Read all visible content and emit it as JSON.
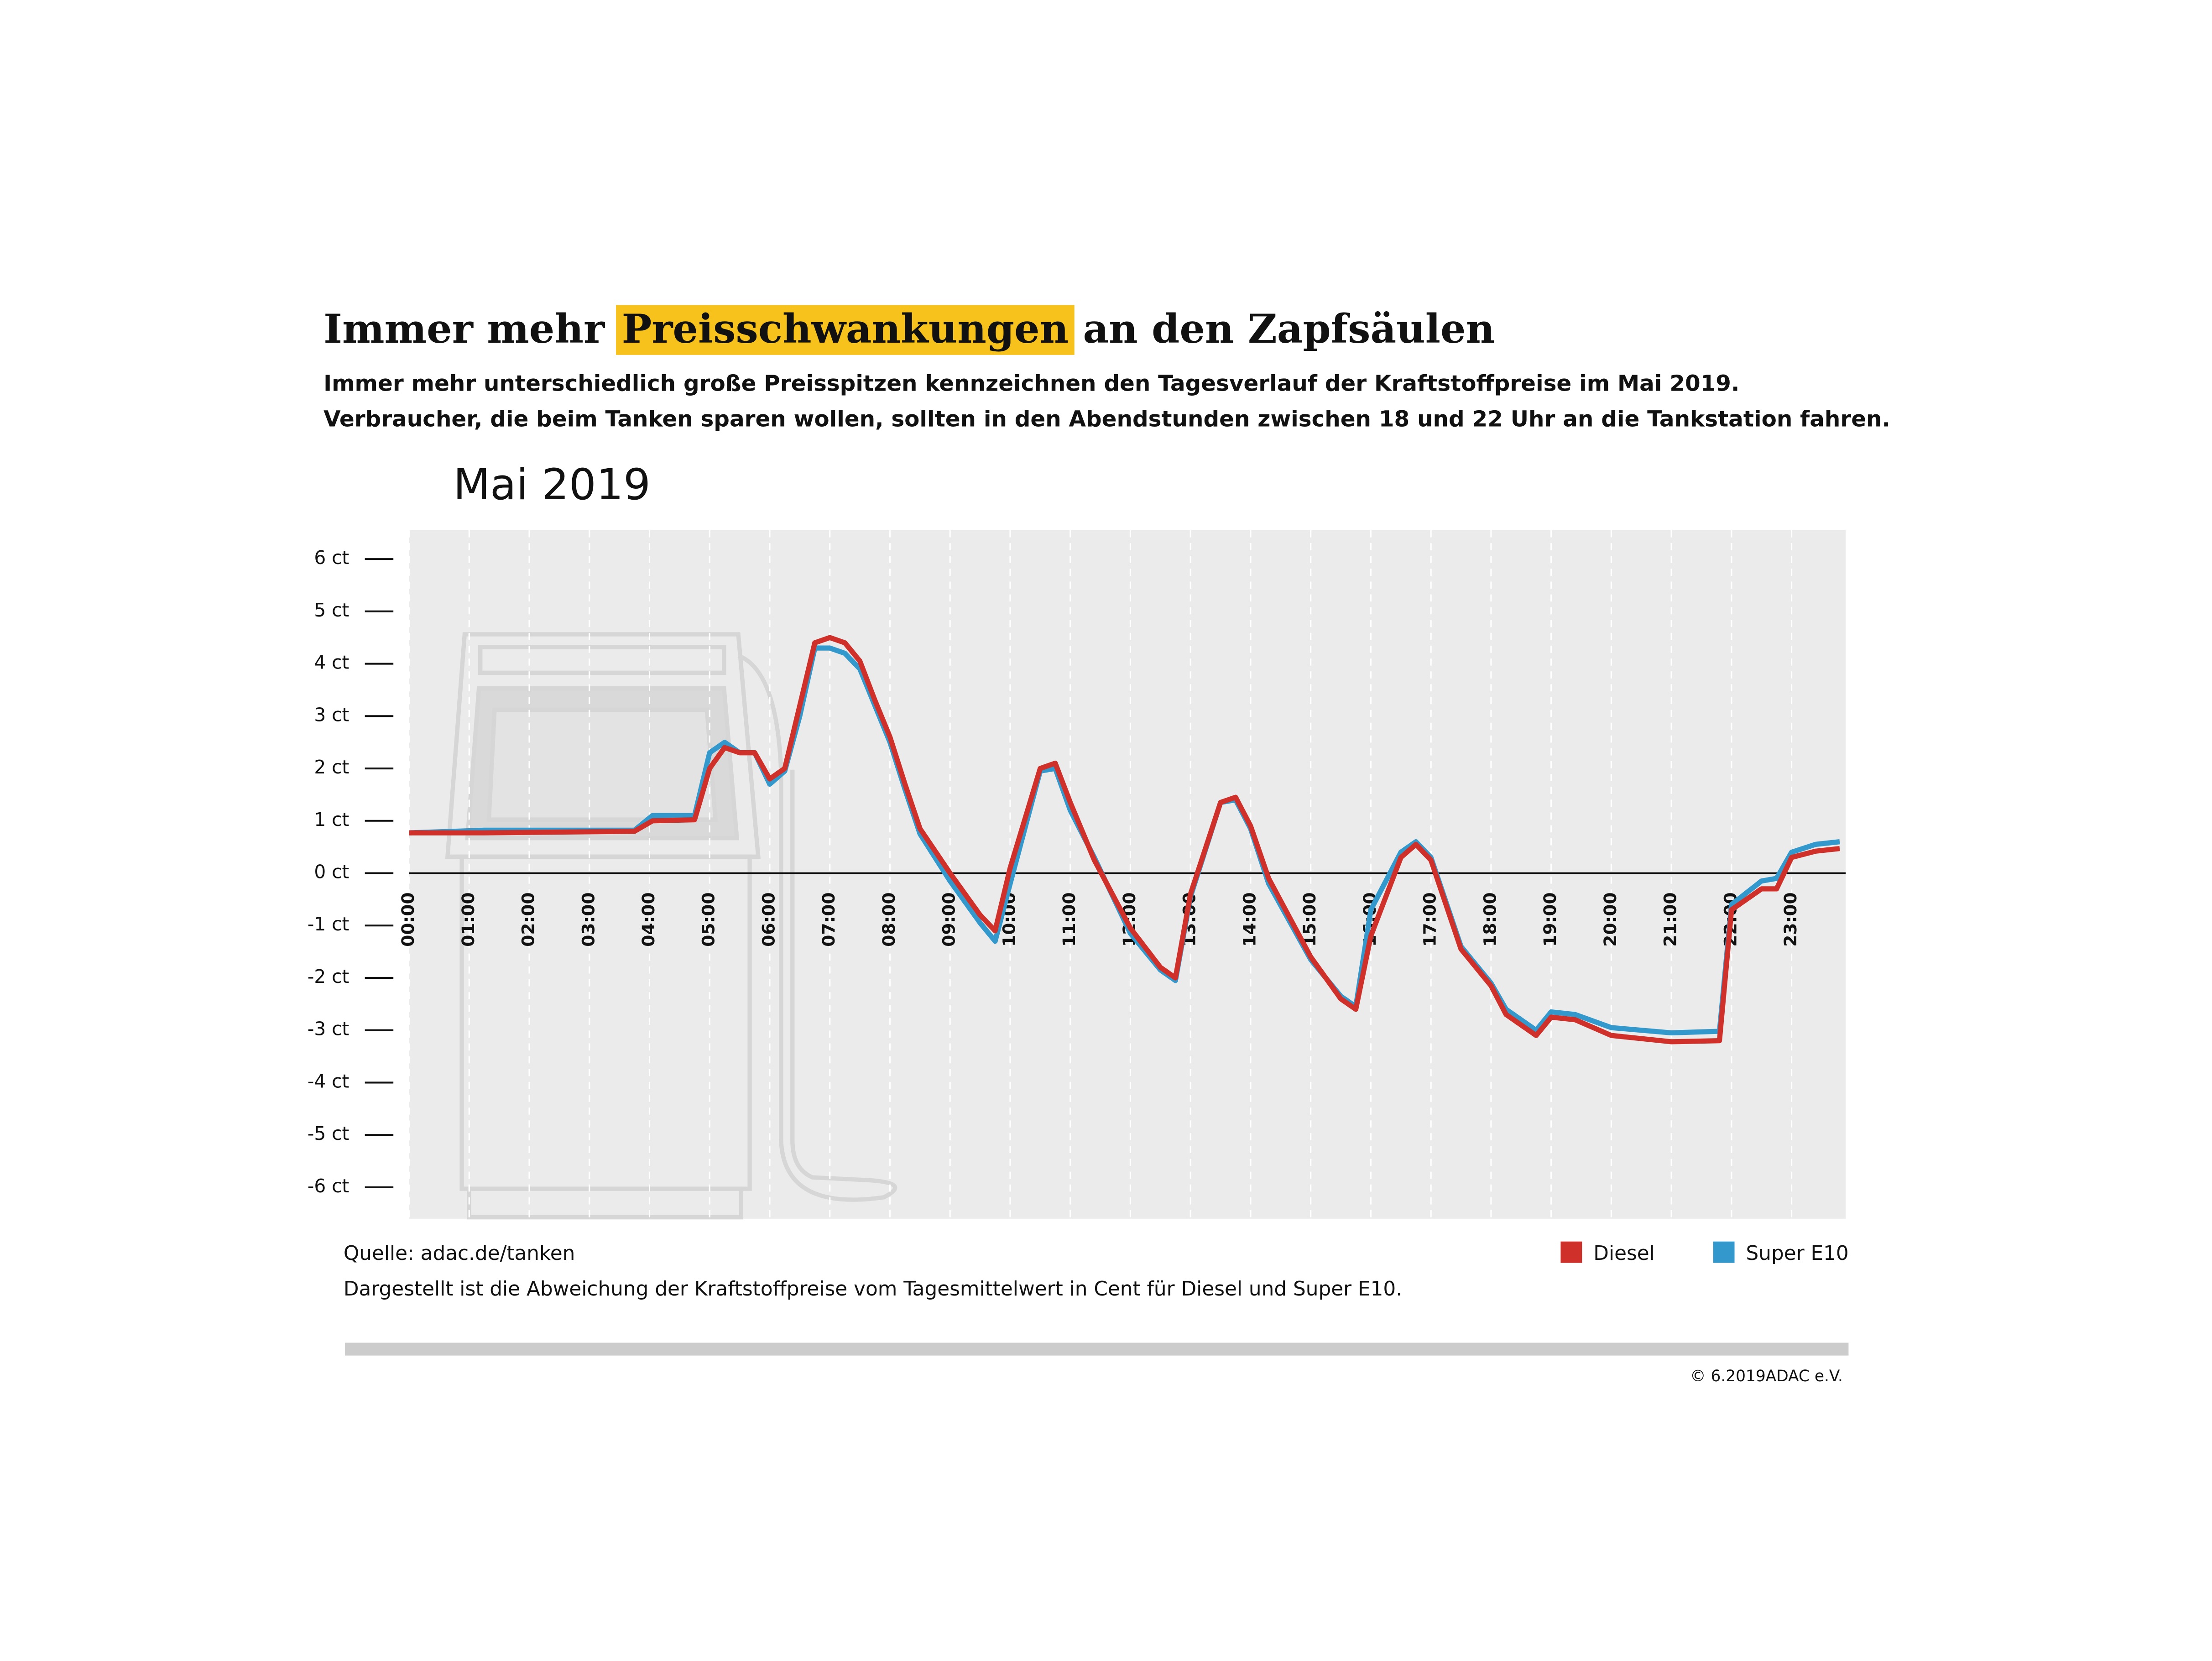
{
  "chart_data": {
    "type": "line",
    "title": [
      "Immer mehr",
      "Preisschwankungen",
      "an den Zapfsäulen"
    ],
    "title_highlight_index": 1,
    "title_highlight_color": "#f7c21b",
    "subtitle": [
      "Immer mehr unterschiedlich große Preisspitzen kennzeichnen den Tagesverlauf der Kraftstoffpreise im Mai 2019.",
      "Verbraucher, die beim Tanken sparen wollen, sollten in den Abendstunden zwischen 18 und 22 Uhr an die Tankstation fahren."
    ],
    "chart_title": "Mai 2019",
    "source": "Quelle: adac.de/tanken",
    "note": "Dargestellt ist die Abweichung der Kraftstoffpreise vom Tagesmittelwert in Cent für Diesel und Super E10.",
    "copyright": "© 6.2019ADAC e.V.",
    "x": [
      0,
      1.25,
      3.75,
      4.05,
      4.75,
      5.0,
      5.25,
      5.5,
      5.75,
      6.0,
      6.25,
      6.5,
      6.75,
      7.0,
      7.25,
      7.5,
      7.75,
      8.0,
      8.25,
      8.5,
      9.0,
      9.5,
      9.75,
      10.0,
      10.5,
      10.75,
      11.0,
      11.4,
      12.0,
      12.5,
      12.75,
      13.0,
      13.5,
      13.75,
      14.0,
      14.3,
      15.0,
      15.5,
      15.75,
      16.0,
      16.5,
      16.75,
      17.0,
      17.5,
      18.0,
      18.25,
      18.75,
      19.0,
      19.4,
      20.0,
      21.0,
      21.8,
      22.0,
      22.5,
      22.75,
      23.0,
      23.4,
      23.8
    ],
    "series": [
      {
        "name": "Super E10",
        "color": "#3399cc",
        "values": [
          0.77,
          0.82,
          0.82,
          1.1,
          1.1,
          2.3,
          2.5,
          2.3,
          2.3,
          1.7,
          1.95,
          3.0,
          4.3,
          4.3,
          4.2,
          3.9,
          3.2,
          2.5,
          1.6,
          0.75,
          -0.15,
          -0.95,
          -1.3,
          -0.2,
          1.95,
          2.0,
          1.2,
          0.3,
          -1.15,
          -1.85,
          -2.05,
          -0.45,
          1.35,
          1.4,
          0.85,
          -0.2,
          -1.65,
          -2.35,
          -2.55,
          -0.7,
          0.4,
          0.6,
          0.3,
          -1.4,
          -2.1,
          -2.6,
          -3.0,
          -2.65,
          -2.7,
          -2.95,
          -3.05,
          -3.02,
          -0.6,
          -0.15,
          -0.1,
          0.4,
          0.55,
          0.6
        ]
      },
      {
        "name": "Diesel",
        "color": "#d0302a",
        "values": [
          0.77,
          0.77,
          0.8,
          1.0,
          1.02,
          2.0,
          2.4,
          2.3,
          2.3,
          1.8,
          2.0,
          3.2,
          4.4,
          4.5,
          4.4,
          4.05,
          3.3,
          2.6,
          1.7,
          0.85,
          0.0,
          -0.8,
          -1.1,
          0.1,
          2.0,
          2.1,
          1.35,
          0.25,
          -1.05,
          -1.8,
          -2.0,
          -0.4,
          1.35,
          1.45,
          0.9,
          -0.1,
          -1.6,
          -2.4,
          -2.6,
          -1.2,
          0.3,
          0.55,
          0.25,
          -1.45,
          -2.15,
          -2.7,
          -3.1,
          -2.75,
          -2.8,
          -3.1,
          -3.22,
          -3.2,
          -0.7,
          -0.3,
          -0.3,
          0.3,
          0.42,
          0.47
        ]
      }
    ],
    "legend_order": [
      1,
      0
    ],
    "xlim": [
      0,
      23.9
    ],
    "xticks": [
      {
        "value": 0,
        "label": "00:00"
      },
      {
        "value": 1,
        "label": "01:00"
      },
      {
        "value": 2,
        "label": "02:00"
      },
      {
        "value": 3,
        "label": "03:00"
      },
      {
        "value": 4,
        "label": "04:00"
      },
      {
        "value": 5,
        "label": "05:00"
      },
      {
        "value": 6,
        "label": "06:00"
      },
      {
        "value": 7,
        "label": "07:00"
      },
      {
        "value": 8,
        "label": "08:00"
      },
      {
        "value": 9,
        "label": "09:00"
      },
      {
        "value": 10,
        "label": "10:00"
      },
      {
        "value": 11,
        "label": "11:00"
      },
      {
        "value": 12,
        "label": "12:00"
      },
      {
        "value": 13,
        "label": "13:00"
      },
      {
        "value": 14,
        "label": "14:00"
      },
      {
        "value": 15,
        "label": "15:00"
      },
      {
        "value": 16,
        "label": "16:00"
      },
      {
        "value": 17,
        "label": "17:00"
      },
      {
        "value": 18,
        "label": "18:00"
      },
      {
        "value": 19,
        "label": "19:00"
      },
      {
        "value": 20,
        "label": "20:00"
      },
      {
        "value": 21,
        "label": "21:00"
      },
      {
        "value": 22,
        "label": "22:00"
      },
      {
        "value": 23,
        "label": "23:00"
      }
    ],
    "ylim": [
      -6.6,
      6.55
    ],
    "yticks": [
      {
        "value": 6,
        "label": "6 ct"
      },
      {
        "value": 5,
        "label": "5 ct"
      },
      {
        "value": 4,
        "label": "4 ct"
      },
      {
        "value": 3,
        "label": "3 ct"
      },
      {
        "value": 2,
        "label": "2 ct"
      },
      {
        "value": 1,
        "label": "1 ct"
      },
      {
        "value": 0,
        "label": "0 ct"
      },
      {
        "value": -1,
        "label": "-1 ct"
      },
      {
        "value": -2,
        "label": "-2 ct"
      },
      {
        "value": -3,
        "label": "-3 ct"
      },
      {
        "value": -4,
        "label": "-4 ct"
      },
      {
        "value": -5,
        "label": "-5 ct"
      },
      {
        "value": -6,
        "label": "-6 ct"
      }
    ],
    "grid": true
  }
}
